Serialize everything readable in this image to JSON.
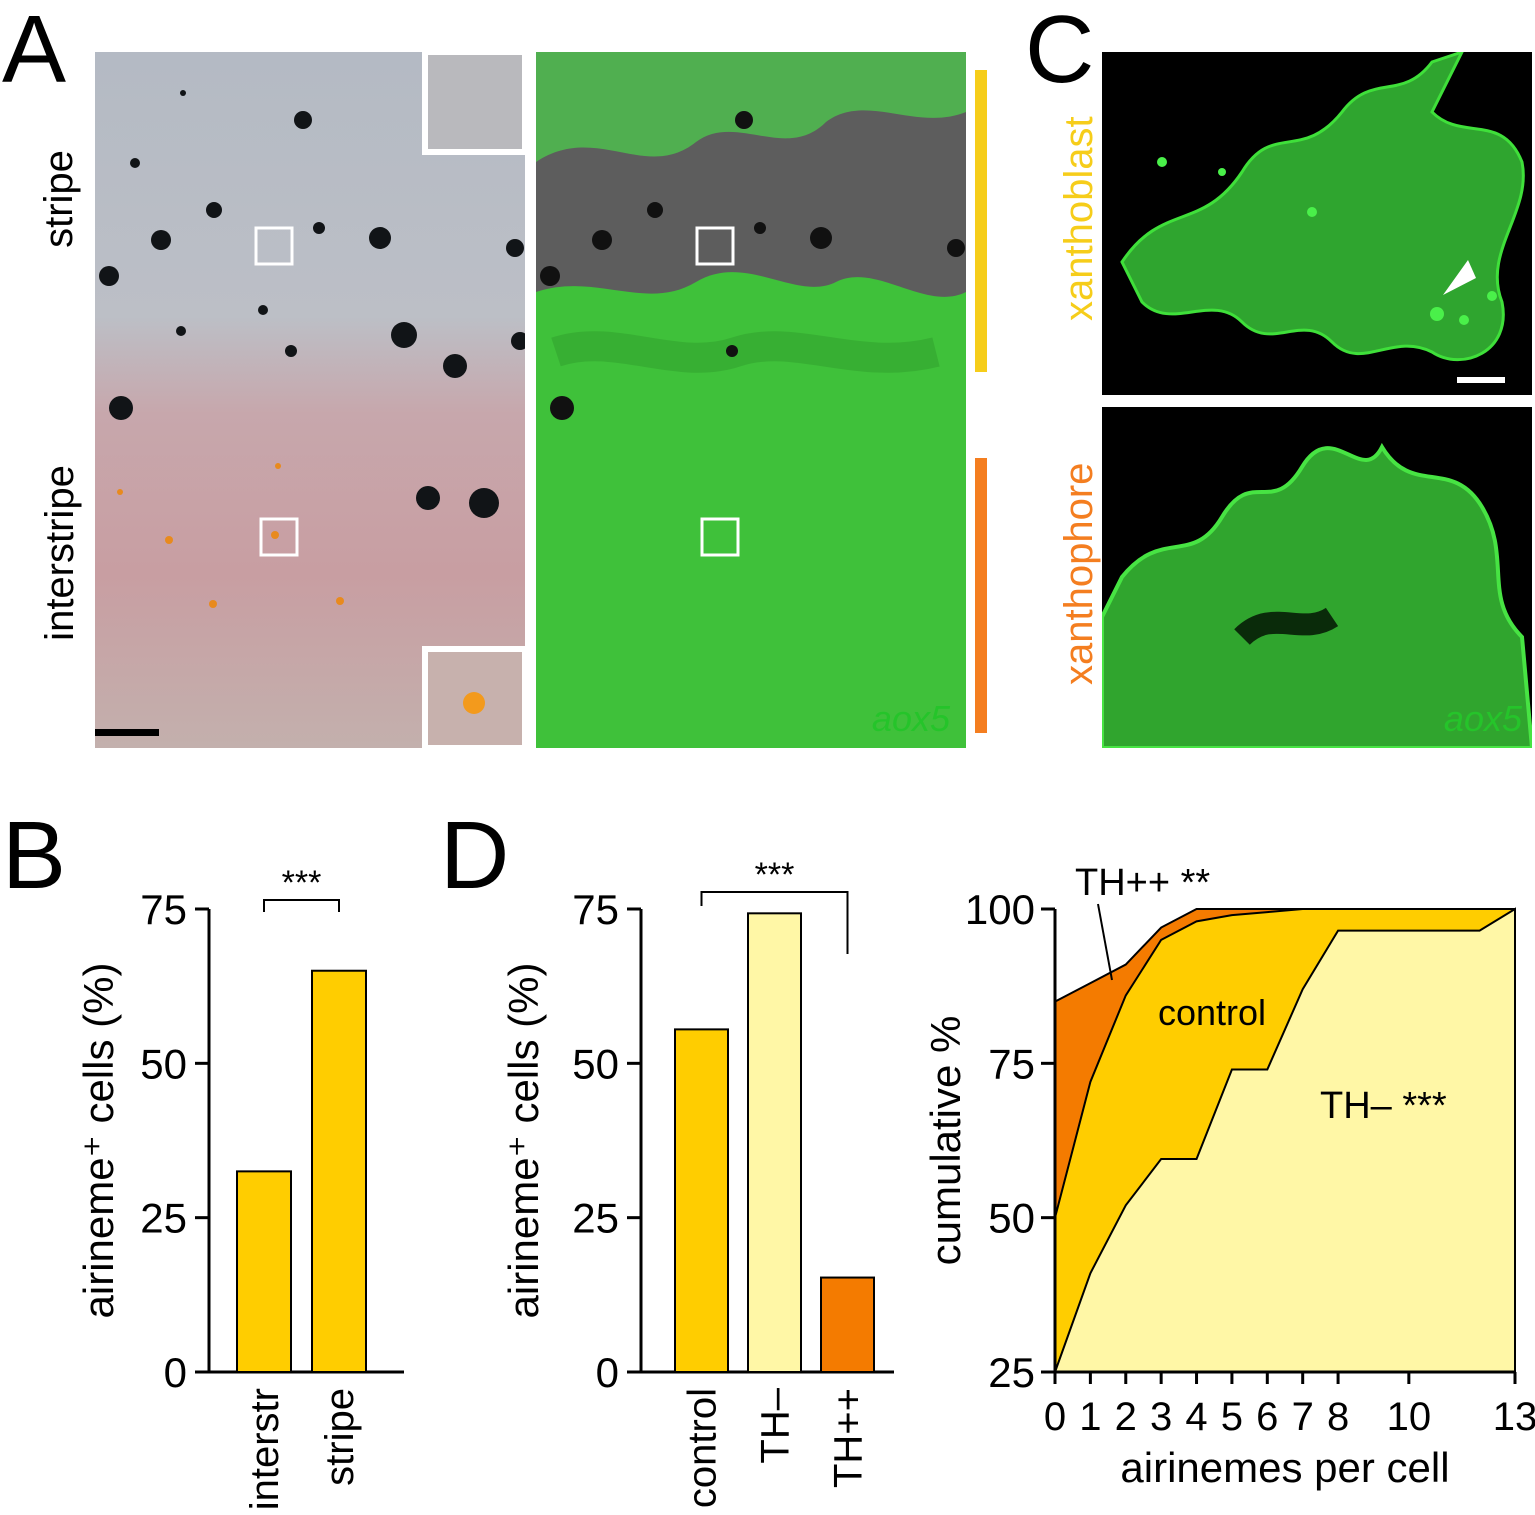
{
  "panels": {
    "A": {
      "letter": "A",
      "row_labels": [
        "stripe",
        "interstripe"
      ],
      "fluor_label": "aox5",
      "colors": {
        "stripe_bar": "#f6cd1a",
        "interstripe_bar": "#f47e20",
        "fluor": "#25c42a"
      }
    },
    "B": {
      "letter": "B",
      "significance": "***"
    },
    "C": {
      "letter": "C",
      "row_labels": [
        "xanthoblast",
        "xanthophore"
      ],
      "fluor_label": "aox5",
      "colors": {
        "xanthoblast": "#f6cd1a",
        "xanthophore": "#f47e20"
      }
    },
    "D": {
      "letter": "D",
      "significance": "***",
      "annotations": {
        "thpp": "TH++ **",
        "control": "control",
        "thm": "TH– ***"
      }
    }
  },
  "chart_data": [
    {
      "id": "B",
      "type": "bar",
      "categories": [
        "interstr",
        "stripe"
      ],
      "values": [
        32.5,
        65
      ],
      "ylabel": "airineme⁺ cells (%)",
      "ylim": [
        0,
        75
      ],
      "yticks": [
        0,
        25,
        50,
        75
      ],
      "colors": [
        "#ffcd00",
        "#ffcd00"
      ]
    },
    {
      "id": "D-left",
      "type": "bar",
      "categories": [
        "control",
        "TH–",
        "TH++"
      ],
      "values": [
        55.5,
        74.3,
        15.3
      ],
      "ylabel": "airineme⁺ cells (%)",
      "ylim": [
        0,
        75
      ],
      "yticks": [
        0,
        25,
        50,
        75
      ],
      "colors": [
        "#ffcd00",
        "#fff7a6",
        "#f47b00"
      ]
    },
    {
      "id": "D-right",
      "type": "area",
      "xlabel": "airinemes per cell",
      "ylabel": "cumulative %",
      "xlim": [
        0,
        13
      ],
      "ylim": [
        25,
        100
      ],
      "xticks": [
        0,
        1,
        2,
        3,
        4,
        5,
        6,
        7,
        8,
        10,
        13
      ],
      "yticks": [
        25,
        50,
        75,
        100
      ],
      "series": [
        {
          "name": "TH++",
          "color": "#f47b00",
          "x": [
            0,
            1,
            2,
            3,
            4,
            5,
            6,
            7,
            8,
            10,
            12,
            13
          ],
          "y": [
            85,
            88,
            91,
            97,
            100,
            100,
            100,
            100,
            100,
            100,
            100,
            100
          ]
        },
        {
          "name": "control",
          "color": "#ffcd00",
          "x": [
            0,
            1,
            2,
            3,
            4,
            5,
            6,
            7,
            8,
            10,
            12,
            13
          ],
          "y": [
            50,
            72,
            86,
            95,
            98,
            99,
            99.5,
            100,
            100,
            100,
            100,
            100
          ]
        },
        {
          "name": "TH–",
          "color": "#fff7a6",
          "x": [
            0,
            1,
            2,
            3,
            4,
            5,
            6,
            7,
            8,
            10,
            12,
            13
          ],
          "y": [
            25,
            41,
            52,
            59.5,
            59.5,
            74,
            74,
            87,
            96.5,
            96.5,
            96.5,
            100
          ]
        }
      ]
    }
  ]
}
